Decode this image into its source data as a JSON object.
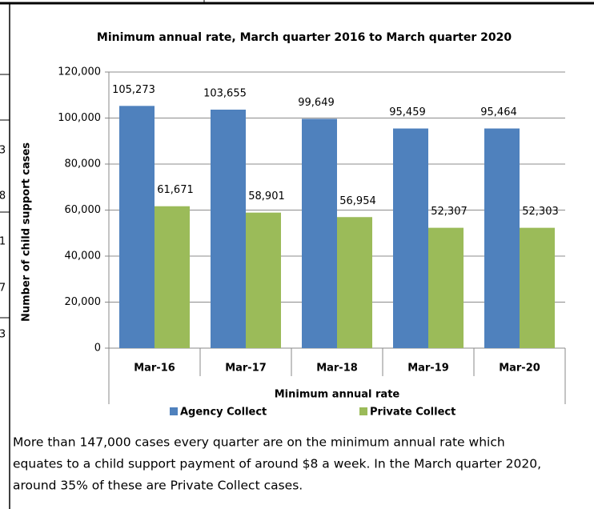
{
  "chart_data": {
    "type": "bar",
    "title": "Minimum annual rate, March quarter 2016 to March quarter 2020",
    "x_label": "Minimum annual rate",
    "y_label": "Number of child support cases",
    "categories": [
      "Mar-16",
      "Mar-17",
      "Mar-18",
      "Mar-19",
      "Mar-20"
    ],
    "series": [
      {
        "name": "Agency Collect",
        "color": "#4f81bd",
        "values": [
          105273,
          103655,
          99649,
          95459,
          95464
        ],
        "value_labels": [
          "105,273",
          "103,655",
          "99,649",
          "95,459",
          "95,464"
        ]
      },
      {
        "name": "Private Collect",
        "color": "#9bbb59",
        "values": [
          61671,
          58901,
          56954,
          52307,
          52303
        ],
        "value_labels": [
          "61,671",
          "58,901",
          "56,954",
          "52,307",
          "52,303"
        ]
      }
    ],
    "ylim": [
      0,
      120000
    ],
    "yticks": [
      0,
      {
        "value": 20000,
        "label": "20,000"
      },
      {
        "value": 40000,
        "label": "40,000"
      },
      {
        "value": 60000,
        "label": "60,000"
      },
      {
        "value": 80000,
        "label": "80,000"
      },
      {
        "value": 100000,
        "label": "100,000"
      },
      {
        "value": 120000,
        "label": "120,000"
      }
    ],
    "grid": true,
    "legend": "bottom"
  },
  "paragraph": [
    "More than 147,000 cases every quarter are on the minimum annual rate which",
    "equates to a child support payment of around $8 a week. In the March quarter 2020,",
    "around 35% of these are Private Collect cases."
  ],
  "edge_fragments": [
    "3",
    "8",
    "1",
    "7",
    "3"
  ]
}
